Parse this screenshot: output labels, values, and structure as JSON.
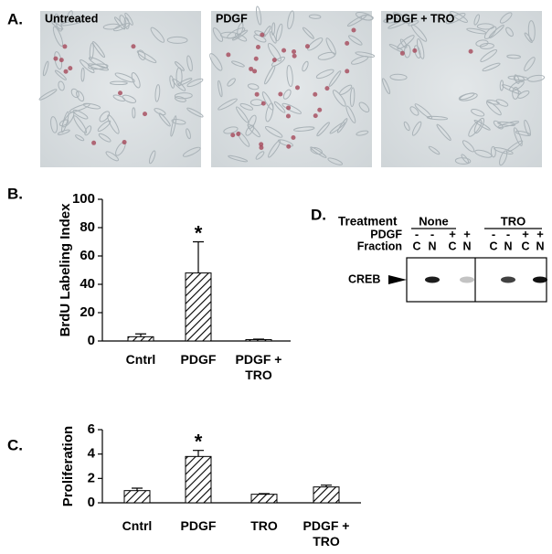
{
  "panel_a": {
    "label": "A.",
    "images": [
      {
        "label": "Untreated"
      },
      {
        "label": "PDGF"
      },
      {
        "label": "PDGF + TRO"
      }
    ]
  },
  "chart_data": [
    {
      "type": "bar",
      "panel_label": "B.",
      "ylabel": "BrdU Labeling Index",
      "categories": [
        "Cntrl",
        "PDGF",
        "PDGF + TRO"
      ],
      "values": [
        3,
        48,
        1
      ],
      "errors": [
        2,
        22,
        0.3
      ],
      "ylim": [
        0,
        100
      ],
      "yticks": [
        0,
        20,
        40,
        60,
        80,
        100
      ],
      "annotation": "*"
    },
    {
      "type": "bar",
      "panel_label": "C.",
      "ylabel": "Proliferation",
      "categories": [
        "Cntrl",
        "PDGF",
        "TRO",
        "PDGF + TRO"
      ],
      "values": [
        1.0,
        3.8,
        0.7,
        1.3
      ],
      "errors": [
        0.2,
        0.5,
        0.05,
        0.15
      ],
      "ylim": [
        0,
        6
      ],
      "yticks": [
        0,
        2,
        4,
        6
      ],
      "annotation": "*"
    }
  ],
  "panel_d": {
    "label": "D.",
    "treatment_label": "Treatment",
    "groups": [
      "None",
      "TRO"
    ],
    "pdgf_label": "PDGF",
    "pdgf": [
      "-",
      "-",
      "+",
      "+",
      "-",
      "-",
      "+",
      "+"
    ],
    "fraction_label": "Fraction",
    "fractions": [
      "C",
      "N",
      "C",
      "N",
      "C",
      "N",
      "C",
      "N"
    ],
    "band_label": "CREB"
  }
}
